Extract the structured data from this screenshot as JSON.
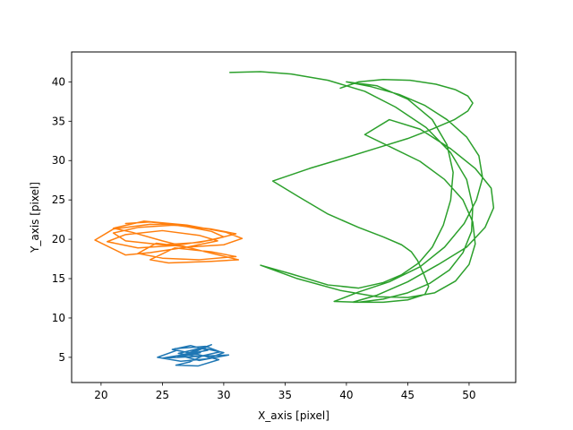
{
  "chart_data": {
    "type": "line",
    "title": "",
    "xlabel": "X_axis [pixel]",
    "ylabel": "Y_axis [pixel]",
    "xlim": [
      17.6,
      53.8
    ],
    "ylim": [
      1.8,
      43.8
    ],
    "xticks": [
      20,
      25,
      30,
      35,
      40,
      45,
      50
    ],
    "yticks": [
      5,
      10,
      15,
      20,
      25,
      30,
      35,
      40
    ],
    "grid": false,
    "legend": "none",
    "series": [
      {
        "color": "#1f77b4",
        "x": [
          26.0,
          28.5,
          29.7,
          28.0,
          26.3,
          28.2,
          30.0,
          28.6,
          26.5,
          24.6,
          26.2,
          28.3,
          27.2,
          26.1,
          27.9,
          29.6,
          27.8,
          25.8,
          27.3,
          28.7,
          26.6,
          25.0,
          27.6,
          30.4,
          28.0,
          26.5,
          29.0,
          27.8,
          26.2,
          28.1
        ],
        "y": [
          6.1,
          6.4,
          5.7,
          5.1,
          5.5,
          6.2,
          5.6,
          4.8,
          4.5,
          5.0,
          5.9,
          5.2,
          4.4,
          4.0,
          3.9,
          4.7,
          5.4,
          6.0,
          6.5,
          5.9,
          5.3,
          4.9,
          5.1,
          5.3,
          4.6,
          5.2,
          6.6,
          5.8,
          5.0,
          5.6
        ]
      },
      {
        "color": "#ff7f0e",
        "x": [
          22.0,
          24.0,
          27.0,
          29.0,
          30.0,
          28.0,
          25.0,
          22.0,
          21.0,
          23.0,
          26.0,
          29.0,
          31.0,
          29.0,
          26.0,
          23.0,
          20.5,
          22.0,
          25.0,
          28.0,
          29.5,
          27.0,
          24.0,
          22.0,
          19.5,
          21.0,
          24.0,
          27.0,
          30.0,
          31.5,
          30.0,
          27.0,
          24.5,
          23.0,
          25.0,
          28.0,
          31.0,
          29.0,
          26.0,
          24.0,
          25.5,
          29.0,
          31.2,
          28.0,
          25.0,
          22.5,
          21.0,
          23.5,
          27.0,
          30.5
        ],
        "y": [
          22.0,
          22.2,
          21.6,
          21.0,
          20.3,
          19.6,
          19.3,
          19.8,
          20.8,
          21.5,
          21.8,
          21.3,
          20.7,
          19.9,
          19.2,
          18.9,
          19.7,
          20.6,
          21.1,
          20.5,
          19.8,
          19.0,
          18.3,
          18.0,
          19.9,
          21.3,
          21.9,
          21.7,
          21.0,
          20.1,
          19.3,
          19.0,
          19.5,
          18.2,
          17.6,
          17.4,
          17.8,
          18.4,
          18.9,
          17.4,
          17.0,
          17.2,
          17.4,
          18.6,
          19.8,
          20.9,
          21.4,
          22.3,
          21.8,
          20.8
        ]
      },
      {
        "color": "#2ca02c",
        "x": [
          30.5,
          33.0,
          35.5,
          38.5,
          41.5,
          44.0,
          46.5,
          48.5,
          49.8,
          50.3,
          50.2,
          49.5,
          48.4,
          46.8,
          45.0,
          43.0,
          41.0,
          39.0,
          41.0,
          43.5,
          46.0,
          48.0,
          49.6,
          50.6,
          51.1,
          50.8,
          49.8,
          48.2,
          46.4,
          44.3,
          42.0,
          40.0,
          42.5,
          45.0,
          47.0,
          48.2,
          48.7,
          48.5,
          47.9,
          47.0,
          45.9,
          44.5,
          43.0,
          41.0,
          38.5,
          35.5,
          33.0,
          36.0,
          39.5,
          42.5,
          45.0,
          47.2,
          48.9,
          50.0,
          50.5,
          50.3,
          49.5,
          48.0,
          46.0,
          43.5,
          41.5,
          43.5,
          46.0,
          48.5,
          50.5,
          51.8,
          52.0,
          51.3,
          49.8,
          47.5,
          45.0,
          42.5,
          40.5,
          43.0,
          45.0,
          46.4,
          46.7,
          46.3,
          45.8,
          45.3,
          44.5,
          43.0,
          41.0,
          38.5,
          36.0,
          34.0,
          37.0,
          40.0,
          42.5,
          45.0,
          47.0,
          48.8,
          49.9,
          50.3,
          49.9,
          48.9,
          47.3,
          45.2,
          43.0,
          41.0,
          39.5
        ],
        "y": [
          41.2,
          41.3,
          41.0,
          40.2,
          38.8,
          36.8,
          34.2,
          31.0,
          27.6,
          24.2,
          21.0,
          18.3,
          16.1,
          14.4,
          13.2,
          12.4,
          12.0,
          12.1,
          13.3,
          14.6,
          16.5,
          19.0,
          22.0,
          25.0,
          27.8,
          30.6,
          33.0,
          35.2,
          37.0,
          38.4,
          39.4,
          40.0,
          39.5,
          37.8,
          35.2,
          32.0,
          28.5,
          25.0,
          21.8,
          19.0,
          17.0,
          15.5,
          14.5,
          13.8,
          14.2,
          15.6,
          16.7,
          15.0,
          13.5,
          12.7,
          12.6,
          13.2,
          14.7,
          16.8,
          19.4,
          22.2,
          25.0,
          27.6,
          29.9,
          31.8,
          33.3,
          35.2,
          34.0,
          31.5,
          29.0,
          26.5,
          24.0,
          21.5,
          19.0,
          16.8,
          14.6,
          12.9,
          12.0,
          12.0,
          12.3,
          13.0,
          14.0,
          15.6,
          17.3,
          18.4,
          19.3,
          20.3,
          21.5,
          23.2,
          25.5,
          27.4,
          29.0,
          30.4,
          31.6,
          32.8,
          34.0,
          35.2,
          36.3,
          37.3,
          38.2,
          39.0,
          39.7,
          40.2,
          40.3,
          40.0,
          39.2
        ]
      }
    ]
  }
}
